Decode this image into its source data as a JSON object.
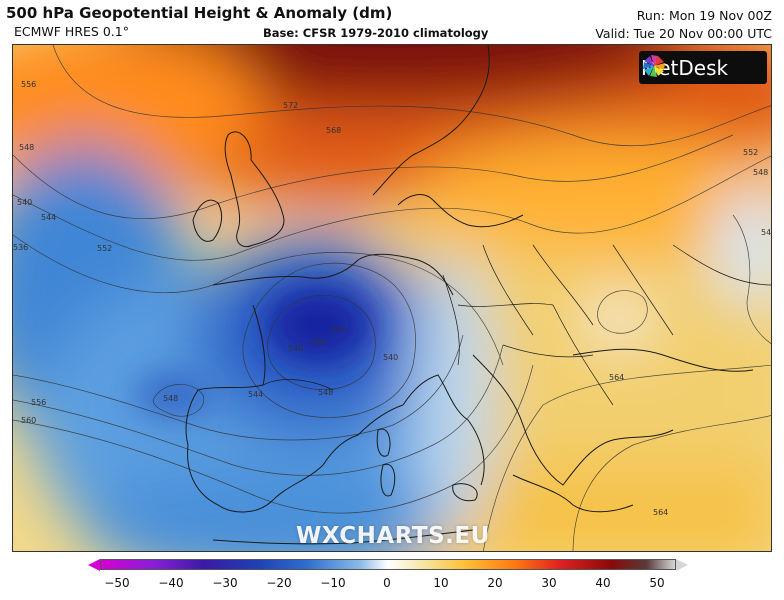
{
  "header": {
    "title": "500 hPa Geopotential Height & Anomaly (dm)",
    "model": "ECMWF HRES 0.1°",
    "base": "Base: CFSR 1979-2010 climatology",
    "run": "Run: Mon 19 Nov 00Z",
    "valid": "Valid: Tue 20 Nov 00:00 UTC"
  },
  "logo": {
    "text": "MetDesk",
    "icon": "metdesk-pinwheel-icon"
  },
  "watermark": "WXCHARTS.EU",
  "contour_labels": [
    "556",
    "572",
    "568",
    "552",
    "548",
    "548",
    "540",
    "544",
    "536",
    "552",
    "544",
    "540",
    "536",
    "532",
    "540",
    "544",
    "548",
    "548",
    "556",
    "560",
    "564",
    "564"
  ],
  "colorbar": {
    "ticks": [
      "−50",
      "−40",
      "−30",
      "−20",
      "−10",
      "0",
      "10",
      "20",
      "30",
      "40",
      "50"
    ],
    "colors": {
      "min": "#d400d4",
      "zero": "#ffffff",
      "max": "#d6d6d6"
    }
  }
}
